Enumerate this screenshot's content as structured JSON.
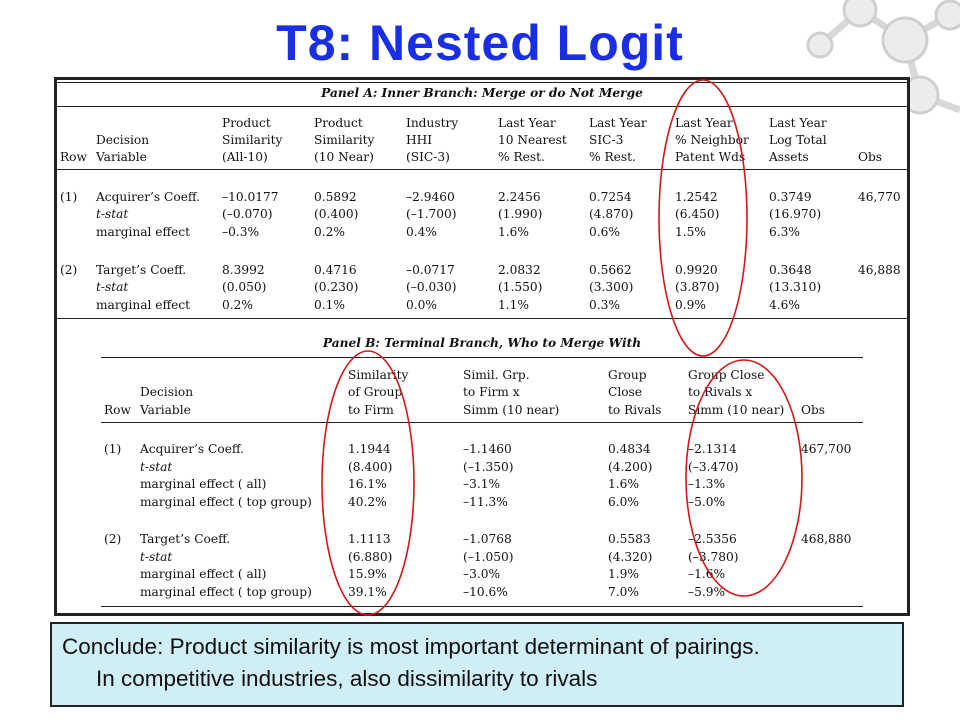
{
  "slide": {
    "title": "T8:  Nested Logit",
    "conclusion_line1": "Conclude: Product similarity is most important determinant of pairings.",
    "conclusion_line2": "In competitive industries, also dissimilarity to rivals"
  },
  "colors": {
    "title": "#1a2ee6",
    "conclusion_bg": "#cfeef5",
    "highlight_ellipse": "#d01818"
  },
  "panel_a": {
    "title": "Panel A: Inner Branch: Merge or do Not Merge",
    "header_row1": [
      "",
      "",
      "Product",
      "Product",
      "Industry",
      "Last Year",
      "Last Year",
      "Last Year",
      "Last Year",
      ""
    ],
    "header_row2": [
      "",
      "Decision",
      "Similarity",
      "Similarity",
      "HHI",
      "10 Nearest",
      "SIC-3",
      "% Neighbor",
      "Log Total",
      ""
    ],
    "header_row3": [
      "Row",
      "Variable",
      "(All-10)",
      "(10 Near)",
      "(SIC-3)",
      "% Rest.",
      "% Rest.",
      "Patent Wds",
      "Assets",
      "Obs"
    ],
    "rows": [
      [
        "(1)",
        "Acquirer’s Coeff.",
        "–10.0177",
        "0.5892",
        "–2.9460",
        "2.2456",
        "0.7254",
        "1.2542",
        "0.3749",
        "46,770"
      ],
      [
        "",
        "t-stat",
        "(–0.070)",
        "(0.400)",
        "(–1.700)",
        "(1.990)",
        "(4.870)",
        "(6.450)",
        "(16.970)",
        ""
      ],
      [
        "",
        "marginal effect",
        "–0.3%",
        "0.2%",
        "0.4%",
        "1.6%",
        "0.6%",
        "1.5%",
        "6.3%",
        ""
      ],
      [
        "(2)",
        "Target’s Coeff.",
        "8.3992",
        "0.4716",
        "–0.0717",
        "2.0832",
        "0.5662",
        "0.9920",
        "0.3648",
        "46,888"
      ],
      [
        "",
        "t-stat",
        "(0.050)",
        "(0.230)",
        "(–0.030)",
        "(1.550)",
        "(3.300)",
        "(3.870)",
        "(13.310)",
        ""
      ],
      [
        "",
        "marginal effect",
        "0.2%",
        "0.1%",
        "0.0%",
        "1.1%",
        "0.3%",
        "0.9%",
        "4.6%",
        ""
      ]
    ]
  },
  "panel_b": {
    "title": "Panel B: Terminal Branch, Who to Merge With",
    "header_row1": [
      "",
      "",
      "Similarity",
      "Simil. Grp.",
      "Group",
      "Group Close",
      ""
    ],
    "header_row2": [
      "",
      "Decision",
      "of Group",
      "to Firm x",
      "Close",
      "to Rivals x",
      ""
    ],
    "header_row3": [
      "Row",
      "Variable",
      "to Firm",
      "Simm (10 near)",
      "to Rivals",
      "Simm (10 near)",
      "Obs"
    ],
    "rows": [
      [
        "(1)",
        "Acquirer’s Coeff.",
        "1.1944",
        "–1.1460",
        "0.4834",
        "–2.1314",
        "467,700"
      ],
      [
        "",
        "t-stat",
        "(8.400)",
        "(–1.350)",
        "(4.200)",
        "(–3.470)",
        ""
      ],
      [
        "",
        "marginal effect ( all)",
        "16.1%",
        "–3.1%",
        "1.6%",
        "–1.3%",
        ""
      ],
      [
        "",
        "marginal effect ( top group)",
        "40.2%",
        "–11.3%",
        "6.0%",
        "–5.0%",
        ""
      ],
      [
        "(2)",
        "Target’s Coeff.",
        "1.1113",
        "–1.0768",
        "0.5583",
        "–2.5356",
        "468,880"
      ],
      [
        "",
        "t-stat",
        "(6.880)",
        "(–1.050)",
        "(4.320)",
        "(–3.780)",
        ""
      ],
      [
        "",
        "marginal effect ( all)",
        "15.9%",
        "–3.0%",
        "1.9%",
        "–1.6%",
        ""
      ],
      [
        "",
        "marginal effect ( top group)",
        "39.1%",
        "–10.6%",
        "7.0%",
        "–5.9%",
        ""
      ]
    ]
  }
}
